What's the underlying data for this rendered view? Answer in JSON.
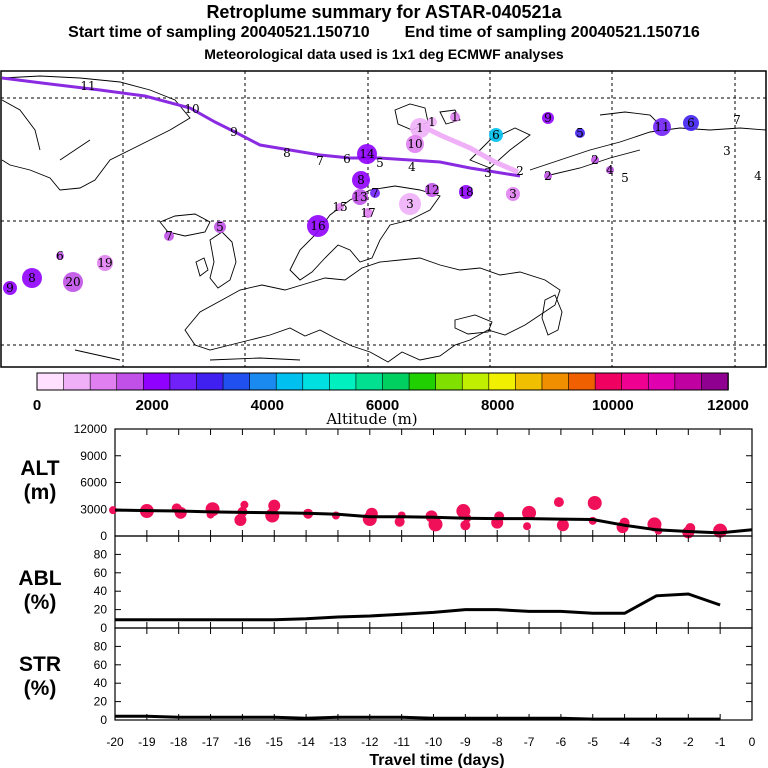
{
  "header": {
    "title": "Retroplume summary for ASTAR-040521a",
    "start_label": "Start time of sampling 20040521.150710",
    "end_label": "End time of sampling 20040521.150716",
    "met_label": "Meteorological data used is 1x1 deg ECMWF analyses"
  },
  "colorbar": {
    "label": "Altitude (m)",
    "tick_labels": [
      "0",
      "2000",
      "4000",
      "6000",
      "8000",
      "10000",
      "12000"
    ],
    "colors": [
      "#ffe0ff",
      "#f0b0f8",
      "#e080f0",
      "#c050e8",
      "#9000ff",
      "#7020f8",
      "#4020f0",
      "#2050f0",
      "#1a8af0",
      "#00c0f0",
      "#00e0e0",
      "#00f0c0",
      "#00e090",
      "#00d060",
      "#20d000",
      "#80e000",
      "#c0f000",
      "#f0f000",
      "#f0c000",
      "#f09000",
      "#f06000",
      "#f00060",
      "#f00090",
      "#e000b0",
      "#c000a0",
      "#900090"
    ]
  },
  "map": {
    "trajectory_labels": [
      "11",
      "10",
      "9",
      "8",
      "7",
      "6",
      "5",
      "4",
      "3",
      "2"
    ],
    "clusters": [
      {
        "n": "1",
        "alt": 1000
      },
      {
        "n": "1",
        "alt": 800
      },
      {
        "n": "1",
        "alt": 900
      },
      {
        "n": "2",
        "alt": 1400
      },
      {
        "n": "2",
        "alt": 1500
      },
      {
        "n": "3",
        "alt": 600
      },
      {
        "n": "3",
        "alt": 1200
      },
      {
        "n": "4",
        "alt": 1800
      },
      {
        "n": "5",
        "alt": 3000
      },
      {
        "n": "6",
        "alt": 3200
      },
      {
        "n": "6",
        "alt": 4300
      },
      {
        "n": "7",
        "alt": 2600
      },
      {
        "n": "8",
        "alt": 2100
      },
      {
        "n": "9",
        "alt": 2200
      },
      {
        "n": "10",
        "alt": 1300
      },
      {
        "n": "11",
        "alt": 2400
      },
      {
        "n": "12",
        "alt": 1600
      },
      {
        "n": "13",
        "alt": 1700
      },
      {
        "n": "14",
        "alt": 2000
      },
      {
        "n": "15",
        "alt": 1100
      },
      {
        "n": "16",
        "alt": 1900
      },
      {
        "n": "17",
        "alt": 1200
      },
      {
        "n": "18",
        "alt": 2300
      },
      {
        "n": "19",
        "alt": 1000
      },
      {
        "n": "20",
        "alt": 1500
      },
      {
        "n": "7",
        "alt": 1700
      },
      {
        "n": "8",
        "alt": 2100
      },
      {
        "n": "9",
        "alt": 1900
      },
      {
        "n": "6",
        "alt": 1600
      },
      {
        "n": "5",
        "alt": 1400
      }
    ]
  },
  "panels": {
    "alt": {
      "label_top": "ALT",
      "label_bottom": "(m)"
    },
    "abl": {
      "label_top": "ABL",
      "label_bottom": "(%)"
    },
    "str": {
      "label_top": "STR",
      "label_bottom": "(%)"
    }
  },
  "xaxis": {
    "label": "Travel time (days)"
  },
  "chart_data": [
    {
      "type": "line",
      "title": "ALT (m)",
      "xlabel": "Travel time (days)",
      "ylabel": "Altitude (m)",
      "xlim": [
        -20,
        0
      ],
      "ylim": [
        0,
        12000
      ],
      "x_ticks": [
        -20,
        -19,
        -18,
        -17,
        -16,
        -15,
        -14,
        -13,
        -12,
        -11,
        -10,
        -9,
        -8,
        -7,
        -6,
        -5,
        -4,
        -3,
        -2,
        -1,
        0
      ],
      "x_tick_labels": [
        "-20",
        "-19",
        "-18",
        "-17",
        "-16",
        "-15",
        "-14",
        "-13",
        "-12",
        "-11",
        "-10",
        "-9",
        "-8",
        "-7",
        "-6",
        "-5",
        "-4",
        "-3",
        "-2",
        "-1",
        "0"
      ],
      "y_ticks": [
        0,
        3000,
        6000,
        9000,
        12000
      ],
      "y_tick_labels": [
        "0",
        "3000",
        "6000",
        "9000",
        "12000"
      ],
      "series": [
        {
          "name": "mean altitude",
          "x": [
            -20,
            -19,
            -18,
            -17,
            -16,
            -15,
            -14,
            -13,
            -12,
            -11,
            -10,
            -9,
            -8,
            -7,
            -6,
            -5,
            -4,
            -3,
            -2,
            -1,
            0
          ],
          "y": [
            2900,
            2850,
            2800,
            2700,
            2650,
            2600,
            2550,
            2450,
            2150,
            2150,
            2100,
            2000,
            1950,
            1950,
            1900,
            1850,
            1200,
            700,
            500,
            350,
            700
          ]
        }
      ],
      "cluster_points": [
        {
          "name": "cluster altitudes",
          "x": [
            -20,
            -19,
            -18,
            -18,
            -17,
            -17,
            -16,
            -16,
            -16,
            -15,
            -15,
            -14,
            -13,
            -12,
            -12,
            -11,
            -11,
            -10,
            -10,
            -9,
            -9,
            -9,
            -8,
            -8,
            -7,
            -7,
            -6,
            -6,
            -5,
            -5,
            -4,
            -4,
            -3,
            -3,
            -2,
            -2,
            -1,
            -1
          ],
          "y": [
            2900,
            2800,
            2600,
            3100,
            2400,
            3000,
            1800,
            2700,
            3500,
            2300,
            3400,
            2500,
            2300,
            1900,
            2500,
            1600,
            2300,
            1300,
            2200,
            1200,
            2000,
            2800,
            1500,
            2200,
            1100,
            2600,
            1200,
            3800,
            1700,
            3700,
            1000,
            1500,
            600,
            1300,
            400,
            900,
            300,
            600
          ]
        }
      ]
    },
    {
      "type": "line",
      "title": "ABL (%)",
      "xlabel": "Travel time (days)",
      "ylabel": "%",
      "xlim": [
        -20,
        0
      ],
      "ylim": [
        0,
        100
      ],
      "y_ticks": [
        0,
        20,
        40,
        60,
        80
      ],
      "y_tick_labels": [
        "0",
        "20",
        "40",
        "60",
        "80"
      ],
      "series": [
        {
          "name": "ABL fraction",
          "x": [
            -20,
            -19,
            -18,
            -17,
            -16,
            -15,
            -14,
            -13,
            -12,
            -11,
            -10,
            -9,
            -8,
            -7,
            -6,
            -5,
            -4,
            -3,
            -2,
            -1
          ],
          "y": [
            9,
            9,
            9,
            9,
            9,
            9,
            10,
            12,
            13,
            15,
            17,
            20,
            20,
            18,
            18,
            16,
            16,
            35,
            37,
            25
          ]
        }
      ]
    },
    {
      "type": "line",
      "title": "STR (%)",
      "xlabel": "Travel time (days)",
      "ylabel": "%",
      "xlim": [
        -20,
        0
      ],
      "ylim": [
        0,
        100
      ],
      "y_ticks": [
        0,
        20,
        40,
        60,
        80
      ],
      "y_tick_labels": [
        "0",
        "20",
        "40",
        "60",
        "80"
      ],
      "series": [
        {
          "name": "STR fraction",
          "x": [
            -20,
            -19,
            -18,
            -17,
            -16,
            -15,
            -14,
            -13,
            -12,
            -11,
            -10,
            -9,
            -8,
            -7,
            -6,
            -5,
            -4,
            -3,
            -2,
            -1
          ],
          "y": [
            4,
            4,
            3,
            3,
            3,
            3,
            2,
            3,
            3,
            3,
            2,
            2,
            2,
            2,
            2,
            1,
            1,
            1,
            1,
            1
          ]
        }
      ]
    }
  ]
}
